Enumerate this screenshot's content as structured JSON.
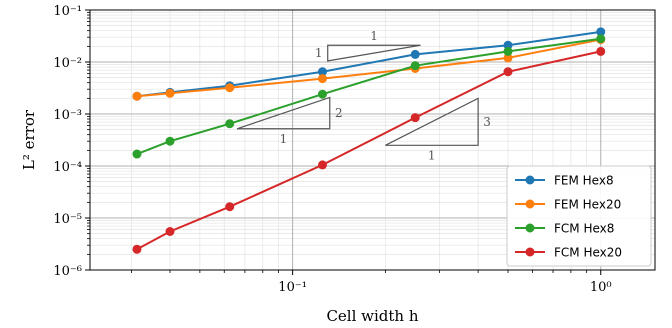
{
  "chart_data": {
    "type": "line",
    "x_scale": "log",
    "y_scale": "log",
    "xlim": [
      0.022,
      1.5
    ],
    "ylim": [
      1e-06,
      0.1
    ],
    "xlabel": "Cell width h",
    "ylabel": "L² error",
    "x_ticks": [
      {
        "value": 0.1,
        "label": "10⁻¹"
      },
      {
        "value": 1,
        "label": "10⁰"
      }
    ],
    "y_ticks": [
      {
        "value": 0.1,
        "label": "10⁻¹"
      },
      {
        "value": 0.01,
        "label": "10⁻²"
      },
      {
        "value": 0.001,
        "label": "10⁻³"
      },
      {
        "value": 0.0001,
        "label": "10⁻⁴"
      },
      {
        "value": 1e-05,
        "label": "10⁻⁵"
      },
      {
        "value": 1e-06,
        "label": "10⁻⁶"
      }
    ],
    "grid": true,
    "legend_position": "lower-right",
    "series": [
      {
        "name": "FEM Hex8",
        "color": "#1f77b4",
        "x": [
          0.03125,
          0.04,
          0.0625,
          0.125,
          0.25,
          0.5,
          1.0
        ],
        "y": [
          0.0022,
          0.0026,
          0.0035,
          0.0065,
          0.014,
          0.021,
          0.038
        ]
      },
      {
        "name": "FEM Hex20",
        "color": "#ff7f0e",
        "x": [
          0.03125,
          0.04,
          0.0625,
          0.125,
          0.25,
          0.5,
          1.0
        ],
        "y": [
          0.0022,
          0.0025,
          0.0032,
          0.0048,
          0.0075,
          0.012,
          0.027
        ]
      },
      {
        "name": "FCM Hex8",
        "color": "#2ca02c",
        "x": [
          0.03125,
          0.04,
          0.0625,
          0.125,
          0.25,
          0.5,
          1.0
        ],
        "y": [
          0.00017,
          0.0003,
          0.00065,
          0.0024,
          0.0085,
          0.016,
          0.028
        ]
      },
      {
        "name": "FCM Hex20",
        "color": "#d62728",
        "x": [
          0.03125,
          0.04,
          0.0625,
          0.125,
          0.25,
          0.5,
          1.0
        ],
        "y": [
          2.5e-06,
          5.5e-06,
          1.65e-05,
          0.000105,
          0.00085,
          0.0065,
          0.016
        ]
      }
    ],
    "slope_triangles": [
      {
        "x1": 0.13,
        "x2": 0.26,
        "y_low": 0.0105,
        "slope": 1,
        "run_label": "1",
        "rise_label": "1",
        "run_side": "top",
        "rise_side": "left"
      },
      {
        "x1": 0.066,
        "x2": 0.132,
        "y_low": 0.00052,
        "slope": 2,
        "run_label": "1",
        "rise_label": "2",
        "run_side": "bottom",
        "rise_side": "right"
      },
      {
        "x1": 0.2,
        "x2": 0.4,
        "y_low": 0.00025,
        "slope": 3,
        "run_label": "1",
        "rise_label": "3",
        "run_side": "bottom",
        "rise_side": "right"
      }
    ]
  }
}
